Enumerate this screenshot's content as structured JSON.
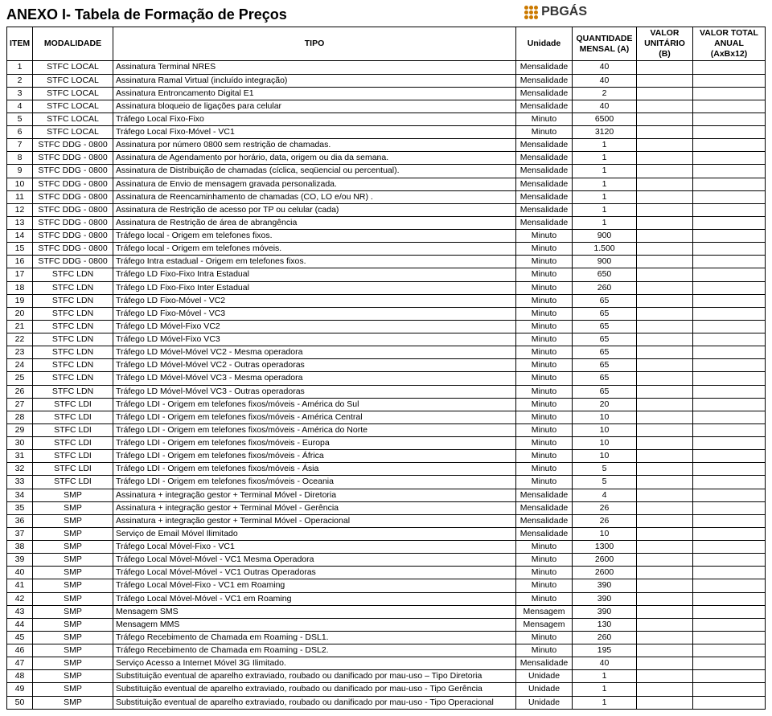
{
  "title": "ANEXO I- Tabela de Formação de Preços",
  "logo": "PBGÁS",
  "headers": {
    "item": "ITEM",
    "modalidade": "MODALIDADE",
    "tipo": "TIPO",
    "unidade": "Unidade",
    "quantidade": "QUANTIDADE MENSAL (A)",
    "valor_unitario": "VALOR UNITÁRIO (B)",
    "valor_total": "VALOR TOTAL ANUAL (AxBx12)"
  },
  "rows": [
    {
      "item": "1",
      "mod": "STFC LOCAL",
      "tipo": "Assinatura Terminal NRES",
      "unid": "Mensalidade",
      "qtd": "40"
    },
    {
      "item": "2",
      "mod": "STFC LOCAL",
      "tipo": "Assinatura Ramal Virtual (incluído integração)",
      "unid": "Mensalidade",
      "qtd": "40"
    },
    {
      "item": "3",
      "mod": "STFC LOCAL",
      "tipo": "Assinatura Entroncamento Digital E1",
      "unid": "Mensalidade",
      "qtd": "2"
    },
    {
      "item": "4",
      "mod": "STFC LOCAL",
      "tipo": "Assinatura bloqueio de ligações para celular",
      "unid": "Mensalidade",
      "qtd": "40"
    },
    {
      "item": "5",
      "mod": "STFC LOCAL",
      "tipo": "Tráfego Local Fixo-Fixo",
      "unid": "Minuto",
      "qtd": "6500"
    },
    {
      "item": "6",
      "mod": "STFC LOCAL",
      "tipo": "Tráfego Local Fixo-Móvel - VC1",
      "unid": "Minuto",
      "qtd": "3120"
    },
    {
      "item": "7",
      "mod": "STFC DDG - 0800",
      "tipo": "Assinatura por número 0800 sem restrição de chamadas.",
      "unid": "Mensalidade",
      "qtd": "1"
    },
    {
      "item": "8",
      "mod": "STFC DDG - 0800",
      "tipo": "Assinatura de Agendamento por horário, data, origem ou dia da semana.",
      "unid": "Mensalidade",
      "qtd": "1"
    },
    {
      "item": "9",
      "mod": "STFC DDG - 0800",
      "tipo": "Assinatura de Distribuição de chamadas (cíclica, seqüencial ou percentual).",
      "unid": "Mensalidade",
      "qtd": "1"
    },
    {
      "item": "10",
      "mod": "STFC DDG - 0800",
      "tipo": "Assinatura de Envio de mensagem gravada personalizada.",
      "unid": "Mensalidade",
      "qtd": "1"
    },
    {
      "item": "11",
      "mod": "STFC DDG - 0800",
      "tipo": "Assinatura de Reencaminhamento de chamadas (CO, LO e/ou NR) .",
      "unid": "Mensalidade",
      "qtd": "1"
    },
    {
      "item": "12",
      "mod": "STFC DDG - 0800",
      "tipo": "Assinatura de Restrição de acesso por TP ou celular (cada)",
      "unid": "Mensalidade",
      "qtd": "1"
    },
    {
      "item": "13",
      "mod": "STFC DDG - 0800",
      "tipo": "Assinatura de Restrição de área de abrangência",
      "unid": "Mensalidade",
      "qtd": "1"
    },
    {
      "item": "14",
      "mod": "STFC DDG - 0800",
      "tipo": "Tráfego local - Origem em telefones fixos.",
      "unid": "Minuto",
      "qtd": "900"
    },
    {
      "item": "15",
      "mod": "STFC DDG - 0800",
      "tipo": "Tráfego local - Origem em telefones móveis.",
      "unid": "Minuto",
      "qtd": "1.500"
    },
    {
      "item": "16",
      "mod": "STFC DDG - 0800",
      "tipo": "Tráfego Intra estadual - Origem em telefones fixos.",
      "unid": "Minuto",
      "qtd": "900"
    },
    {
      "item": "17",
      "mod": "STFC LDN",
      "tipo": "Tráfego LD Fixo-Fixo Intra Estadual",
      "unid": "Minuto",
      "qtd": "650"
    },
    {
      "item": "18",
      "mod": "STFC LDN",
      "tipo": "Tráfego LD Fixo-Fixo Inter Estadual",
      "unid": "Minuto",
      "qtd": "260"
    },
    {
      "item": "19",
      "mod": "STFC LDN",
      "tipo": "Tráfego LD Fixo-Móvel - VC2",
      "unid": "Minuto",
      "qtd": "65"
    },
    {
      "item": "20",
      "mod": "STFC LDN",
      "tipo": "Tráfego LD Fixo-Móvel - VC3",
      "unid": "Minuto",
      "qtd": "65"
    },
    {
      "item": "21",
      "mod": "STFC LDN",
      "tipo": "Tráfego LD Móvel-Fixo VC2",
      "unid": "Minuto",
      "qtd": "65"
    },
    {
      "item": "22",
      "mod": "STFC LDN",
      "tipo": "Tráfego LD Móvel-Fixo VC3",
      "unid": "Minuto",
      "qtd": "65"
    },
    {
      "item": "23",
      "mod": "STFC LDN",
      "tipo": "Tráfego LD Móvel-Móvel VC2 - Mesma operadora",
      "unid": "Minuto",
      "qtd": "65"
    },
    {
      "item": "24",
      "mod": "STFC LDN",
      "tipo": "Tráfego LD Móvel-Móvel VC2 - Outras operadoras",
      "unid": "Minuto",
      "qtd": "65"
    },
    {
      "item": "25",
      "mod": "STFC LDN",
      "tipo": "Tráfego LD Móvel-Móvel VC3 - Mesma operadora",
      "unid": "Minuto",
      "qtd": "65"
    },
    {
      "item": "26",
      "mod": "STFC LDN",
      "tipo": "Tráfego LD Móvel-Móvel VC3 - Outras operadoras",
      "unid": "Minuto",
      "qtd": "65"
    },
    {
      "item": "27",
      "mod": "STFC LDI",
      "tipo": "Tráfego LDI - Origem em telefones fixos/móveis - América do Sul",
      "unid": "Minuto",
      "qtd": "20"
    },
    {
      "item": "28",
      "mod": "STFC LDI",
      "tipo": "Tráfego LDI - Origem em telefones fixos/móveis - América Central",
      "unid": "Minuto",
      "qtd": "10"
    },
    {
      "item": "29",
      "mod": "STFC LDI",
      "tipo": "Tráfego LDI - Origem em telefones fixos/móveis - América do Norte",
      "unid": "Minuto",
      "qtd": "10"
    },
    {
      "item": "30",
      "mod": "STFC LDI",
      "tipo": "Tráfego LDI - Origem em telefones fixos/móveis - Europa",
      "unid": "Minuto",
      "qtd": "10"
    },
    {
      "item": "31",
      "mod": "STFC LDI",
      "tipo": "Tráfego LDI - Origem em telefones fixos/móveis - África",
      "unid": "Minuto",
      "qtd": "10"
    },
    {
      "item": "32",
      "mod": "STFC LDI",
      "tipo": "Tráfego LDI - Origem em telefones fixos/móveis - Ásia",
      "unid": "Minuto",
      "qtd": "5"
    },
    {
      "item": "33",
      "mod": "STFC LDI",
      "tipo": "Tráfego LDI - Origem em telefones fixos/móveis - Oceania",
      "unid": "Minuto",
      "qtd": "5"
    },
    {
      "item": "34",
      "mod": "SMP",
      "tipo": "Assinatura  + integração gestor + Terminal Móvel - Diretoria",
      "unid": "Mensalidade",
      "qtd": "4"
    },
    {
      "item": "35",
      "mod": "SMP",
      "tipo": "Assinatura  + integração gestor + Terminal Móvel - Gerência",
      "unid": "Mensalidade",
      "qtd": "26"
    },
    {
      "item": "36",
      "mod": "SMP",
      "tipo": "Assinatura + integração gestor + Terminal Móvel - Operacional",
      "unid": "Mensalidade",
      "qtd": "26"
    },
    {
      "item": "37",
      "mod": "SMP",
      "tipo": "Serviço de Email Móvel Ilimitado",
      "unid": "Mensalidade",
      "qtd": "10"
    },
    {
      "item": "38",
      "mod": "SMP",
      "tipo": "Tráfego Local Móvel-Fixo - VC1",
      "unid": "Minuto",
      "qtd": "1300"
    },
    {
      "item": "39",
      "mod": "SMP",
      "tipo": "Tráfego Local Móvel-Móvel - VC1 Mesma Operadora",
      "unid": "Minuto",
      "qtd": "2600"
    },
    {
      "item": "40",
      "mod": "SMP",
      "tipo": "Tráfego Local Móvel-Móvel - VC1 Outras Operadoras",
      "unid": "Minuto",
      "qtd": "2600"
    },
    {
      "item": "41",
      "mod": "SMP",
      "tipo": "Tráfego Local Móvel-Fixo - VC1 em Roaming",
      "unid": "Minuto",
      "qtd": "390"
    },
    {
      "item": "42",
      "mod": "SMP",
      "tipo": "Tráfego Local Móvel-Móvel - VC1 em Roaming",
      "unid": "Minuto",
      "qtd": "390"
    },
    {
      "item": "43",
      "mod": "SMP",
      "tipo": "Mensagem SMS",
      "unid": "Mensagem",
      "qtd": "390"
    },
    {
      "item": "44",
      "mod": "SMP",
      "tipo": "Mensagem MMS",
      "unid": "Mensagem",
      "qtd": "130"
    },
    {
      "item": "45",
      "mod": "SMP",
      "tipo": "Tráfego Recebimento de Chamada em Roaming - DSL1.",
      "unid": "Minuto",
      "qtd": "260"
    },
    {
      "item": "46",
      "mod": "SMP",
      "tipo": "Tráfego Recebimento de Chamada em Roaming - DSL2.",
      "unid": "Minuto",
      "qtd": "195"
    },
    {
      "item": "47",
      "mod": "SMP",
      "tipo": "Serviço Acesso a Internet Móvel 3G Ilimitado.",
      "unid": "Mensalidade",
      "qtd": "40"
    },
    {
      "item": "48",
      "mod": "SMP",
      "tipo": "Substituição eventual de aparelho extraviado, roubado ou danificado por mau-uso – Tipo Diretoria",
      "unid": "Unidade",
      "qtd": "1"
    },
    {
      "item": "49",
      "mod": "SMP",
      "tipo": "Substituição eventual de aparelho extraviado, roubado ou danificado por mau-uso - Tipo Gerência",
      "unid": "Unidade",
      "qtd": "1"
    },
    {
      "item": "50",
      "mod": "SMP",
      "tipo": "Substituição eventual de aparelho extraviado, roubado ou danificado por mau-uso - Tipo Operacional",
      "unid": "Unidade",
      "qtd": "1"
    }
  ]
}
